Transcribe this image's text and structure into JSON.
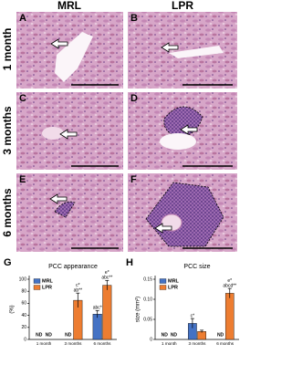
{
  "column_headers": [
    "MRL",
    "LPR"
  ],
  "row_labels": [
    "1 month",
    "3 months",
    "6 months"
  ],
  "panel_labels": [
    "A",
    "B",
    "C",
    "D",
    "E",
    "F"
  ],
  "chart_data": [
    {
      "type": "bar",
      "panel_label": "G",
      "title": "PCC appearance",
      "y_label": "(%)",
      "categories": [
        "1 month",
        "3 months",
        "6 months"
      ],
      "ylim": [
        0,
        100
      ],
      "yticks": [
        0,
        20,
        40,
        60,
        80,
        100
      ],
      "legend": "upper left",
      "series": [
        {
          "name": "MRL",
          "color": "#4472c4",
          "values": [
            null,
            null,
            42
          ],
          "errors": [
            null,
            null,
            6
          ],
          "value_labels": [
            "ND",
            "ND",
            null
          ],
          "significance": [
            [],
            [],
            [
              "abc*"
            ]
          ]
        },
        {
          "name": "LPR",
          "color": "#ed7d31",
          "values": [
            null,
            65,
            90
          ],
          "errors": [
            null,
            12,
            8
          ],
          "value_labels": [
            "ND",
            null,
            null
          ],
          "significance": [
            [],
            [
              "c*",
              "ab**"
            ],
            [
              "e*",
              "abc**"
            ]
          ]
        }
      ]
    },
    {
      "type": "bar",
      "panel_label": "H",
      "title": "PCC size",
      "y_label": "size (mm²)",
      "categories": [
        "1 month",
        "3 months",
        "6 months"
      ],
      "ylim": [
        0,
        0.15
      ],
      "yticks": [
        0,
        0.05,
        {
          "value": 0.1,
          "label": "0.10"
        },
        0.15
      ],
      "legend": "upper left",
      "series": [
        {
          "name": "MRL",
          "color": "#4472c4",
          "values": [
            null,
            0.04,
            null
          ],
          "errors": [
            null,
            0.012,
            null
          ],
          "value_labels": [
            "ND",
            null,
            "ND"
          ],
          "significance": [
            [],
            [
              "c*"
            ],
            []
          ]
        },
        {
          "name": "LPR",
          "color": "#ed7d31",
          "values": [
            null,
            0.02,
            0.115
          ],
          "errors": [
            null,
            0.003,
            0.012
          ],
          "value_labels": [
            "ND",
            null,
            null
          ],
          "significance": [
            [],
            [],
            [
              "e*",
              "abcd**"
            ]
          ]
        }
      ]
    }
  ]
}
